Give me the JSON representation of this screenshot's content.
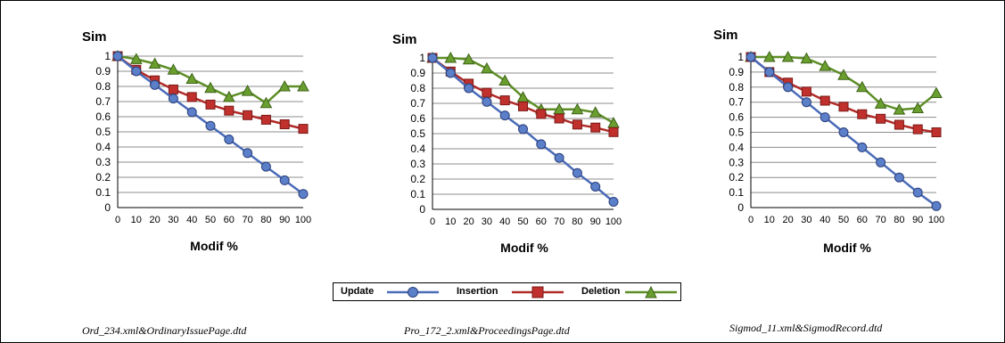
{
  "chart_data": [
    {
      "type": "line",
      "ylabel": "Sim",
      "xlabel": "Modif %",
      "x": [
        0,
        10,
        20,
        30,
        40,
        50,
        60,
        70,
        80,
        90,
        100
      ],
      "ylim": [
        0,
        1
      ],
      "yticks": [
        "0",
        "0.1",
        "0.2",
        "0.3",
        "0.4",
        "0.5",
        "0.6",
        "0.7",
        "0.8",
        "0.9",
        "1"
      ],
      "xticks": [
        "0",
        "10",
        "20",
        "30",
        "40",
        "50",
        "60",
        "70",
        "80",
        "90",
        "100"
      ],
      "grid": "horizontal",
      "series": [
        {
          "name": "Update",
          "values": [
            1,
            0.9,
            0.81,
            0.72,
            0.63,
            0.54,
            0.45,
            0.36,
            0.27,
            0.18,
            0.09
          ]
        },
        {
          "name": "Insertion",
          "values": [
            1,
            0.91,
            0.84,
            0.78,
            0.73,
            0.68,
            0.64,
            0.61,
            0.58,
            0.55,
            0.52
          ]
        },
        {
          "name": "Deletion",
          "values": [
            1,
            0.98,
            0.95,
            0.91,
            0.85,
            0.79,
            0.73,
            0.77,
            0.69,
            0.8,
            0.8
          ]
        }
      ],
      "caption": "Ord_234.xml&OrdinaryIssuePage.dtd"
    },
    {
      "type": "line",
      "ylabel": "Sim",
      "xlabel": "Modif %",
      "x": [
        0,
        10,
        20,
        30,
        40,
        50,
        60,
        70,
        80,
        90,
        100
      ],
      "ylim": [
        0,
        1
      ],
      "yticks": [
        "0",
        "0.1",
        "0.2",
        "0.3",
        "0.4",
        "0.5",
        "0.6",
        "0.7",
        "0.8",
        "0.9",
        "1"
      ],
      "xticks": [
        "0",
        "10",
        "20",
        "30",
        "40",
        "50",
        "60",
        "70",
        "80",
        "90",
        "100"
      ],
      "grid": "horizontal",
      "series": [
        {
          "name": "Update",
          "values": [
            1,
            0.9,
            0.8,
            0.71,
            0.62,
            0.53,
            0.43,
            0.34,
            0.24,
            0.15,
            0.05
          ]
        },
        {
          "name": "Insertion",
          "values": [
            1,
            0.91,
            0.83,
            0.77,
            0.72,
            0.68,
            0.63,
            0.6,
            0.56,
            0.54,
            0.51
          ]
        },
        {
          "name": "Deletion",
          "values": [
            1,
            1,
            0.99,
            0.93,
            0.85,
            0.74,
            0.66,
            0.66,
            0.66,
            0.64,
            0.57
          ]
        }
      ],
      "caption": "Pro_172_2.xml&ProceedingsPage.dtd"
    },
    {
      "type": "line",
      "ylabel": "Sim",
      "xlabel": "Modif %",
      "x": [
        0,
        10,
        20,
        30,
        40,
        50,
        60,
        70,
        80,
        90,
        100
      ],
      "ylim": [
        0,
        1
      ],
      "yticks": [
        "0",
        "0.1",
        "0.2",
        "0.3",
        "0.4",
        "0.5",
        "0.6",
        "0.7",
        "0.8",
        "0.9",
        "1"
      ],
      "xticks": [
        "0",
        "10",
        "20",
        "30",
        "40",
        "50",
        "60",
        "70",
        "80",
        "90",
        "100"
      ],
      "grid": "horizontal",
      "series": [
        {
          "name": "Update",
          "values": [
            1,
            0.9,
            0.8,
            0.7,
            0.6,
            0.5,
            0.4,
            0.3,
            0.2,
            0.1,
            0.01
          ]
        },
        {
          "name": "Insertion",
          "values": [
            1,
            0.9,
            0.83,
            0.77,
            0.71,
            0.67,
            0.62,
            0.59,
            0.55,
            0.52,
            0.5
          ]
        },
        {
          "name": "Deletion",
          "values": [
            1,
            1,
            1,
            0.99,
            0.94,
            0.88,
            0.8,
            0.69,
            0.65,
            0.66,
            0.76
          ]
        }
      ],
      "caption": "Sigmod_11.xml&SigmodRecord.dtd"
    }
  ],
  "legend": [
    {
      "label": "Update",
      "marker": "circle",
      "color": "#4a6bb8",
      "fill": "#5b7fc9"
    },
    {
      "label": "Insertion",
      "marker": "square",
      "color": "#b02a28",
      "fill": "#c0302c"
    },
    {
      "label": "Deletion",
      "marker": "triangle",
      "color": "#5d8e26",
      "fill": "#6a9e2f"
    }
  ],
  "colors": {
    "Update": "#4a6bb8",
    "Insertion": "#b02a28",
    "Deletion": "#5d8e26"
  }
}
